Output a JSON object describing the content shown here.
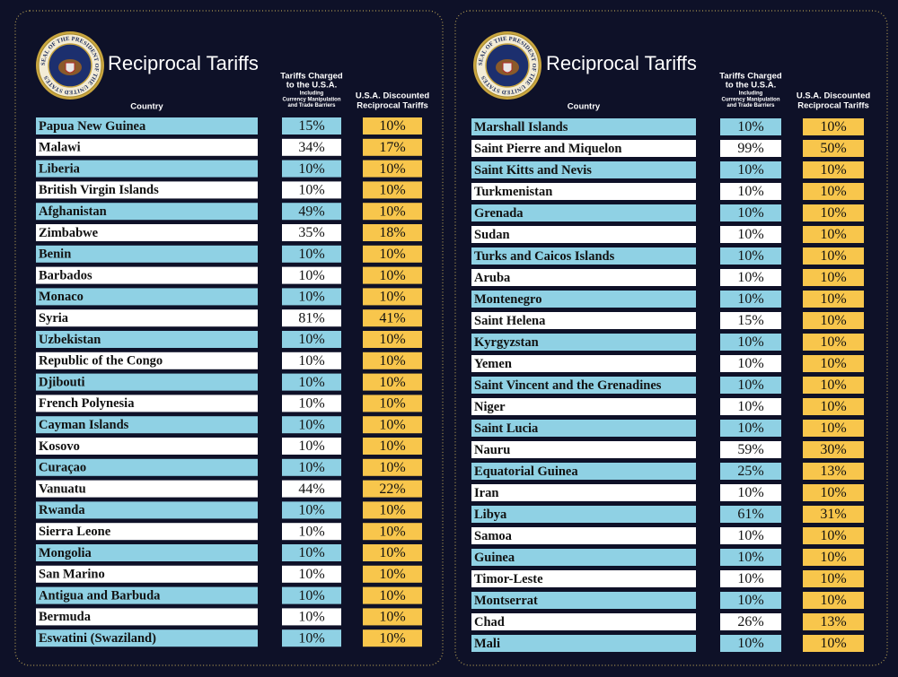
{
  "panels": [
    {
      "seal_text": "SEAL OF THE PRESIDENT OF THE UNITED STATES",
      "title": "Reciprocal Tariffs",
      "headers": {
        "country": "Country",
        "charged": [
          "Tariffs Charged",
          "to the U.S.A."
        ],
        "charged_note": [
          "Including",
          "Currency Manipulation",
          "and Trade Barriers"
        ],
        "discounted": [
          "U.S.A. Discounted",
          "Reciprocal Tariffs"
        ]
      },
      "rows": [
        [
          "Papua New Guinea",
          "15%",
          "10%"
        ],
        [
          "Malawi",
          "34%",
          "17%"
        ],
        [
          "Liberia",
          "10%",
          "10%"
        ],
        [
          "British Virgin Islands",
          "10%",
          "10%"
        ],
        [
          "Afghanistan",
          "49%",
          "10%"
        ],
        [
          "Zimbabwe",
          "35%",
          "18%"
        ],
        [
          "Benin",
          "10%",
          "10%"
        ],
        [
          "Barbados",
          "10%",
          "10%"
        ],
        [
          "Monaco",
          "10%",
          "10%"
        ],
        [
          "Syria",
          "81%",
          "41%"
        ],
        [
          "Uzbekistan",
          "10%",
          "10%"
        ],
        [
          "Republic of the Congo",
          "10%",
          "10%"
        ],
        [
          "Djibouti",
          "10%",
          "10%"
        ],
        [
          "French Polynesia",
          "10%",
          "10%"
        ],
        [
          "Cayman Islands",
          "10%",
          "10%"
        ],
        [
          "Kosovo",
          "10%",
          "10%"
        ],
        [
          "Curaçao",
          "10%",
          "10%"
        ],
        [
          "Vanuatu",
          "44%",
          "22%"
        ],
        [
          "Rwanda",
          "10%",
          "10%"
        ],
        [
          "Sierra Leone",
          "10%",
          "10%"
        ],
        [
          "Mongolia",
          "10%",
          "10%"
        ],
        [
          "San Marino",
          "10%",
          "10%"
        ],
        [
          "Antigua and Barbuda",
          "10%",
          "10%"
        ],
        [
          "Bermuda",
          "10%",
          "10%"
        ],
        [
          "Eswatini (Swaziland)",
          "10%",
          "10%"
        ]
      ]
    },
    {
      "seal_text": "SEAL OF THE PRESIDENT OF THE UNITED STATES",
      "title": "Reciprocal Tariffs",
      "headers": {
        "country": "Country",
        "charged": [
          "Tariffs Charged",
          "to the U.S.A."
        ],
        "charged_note": [
          "Including",
          "Currency Manipulation",
          "and Trade Barriers"
        ],
        "discounted": [
          "U.S.A. Discounted",
          "Reciprocal Tariffs"
        ]
      },
      "rows": [
        [
          "Marshall Islands",
          "10%",
          "10%"
        ],
        [
          "Saint Pierre and Miquelon",
          "99%",
          "50%"
        ],
        [
          "Saint Kitts and Nevis",
          "10%",
          "10%"
        ],
        [
          "Turkmenistan",
          "10%",
          "10%"
        ],
        [
          "Grenada",
          "10%",
          "10%"
        ],
        [
          "Sudan",
          "10%",
          "10%"
        ],
        [
          "Turks and Caicos Islands",
          "10%",
          "10%"
        ],
        [
          "Aruba",
          "10%",
          "10%"
        ],
        [
          "Montenegro",
          "10%",
          "10%"
        ],
        [
          "Saint Helena",
          "15%",
          "10%"
        ],
        [
          "Kyrgyzstan",
          "10%",
          "10%"
        ],
        [
          "Yemen",
          "10%",
          "10%"
        ],
        [
          "Saint Vincent and the Grenadines",
          "10%",
          "10%"
        ],
        [
          "Niger",
          "10%",
          "10%"
        ],
        [
          "Saint Lucia",
          "10%",
          "10%"
        ],
        [
          "Nauru",
          "59%",
          "30%"
        ],
        [
          "Equatorial Guinea",
          "25%",
          "13%"
        ],
        [
          "Iran",
          "10%",
          "10%"
        ],
        [
          "Libya",
          "61%",
          "31%"
        ],
        [
          "Samoa",
          "10%",
          "10%"
        ],
        [
          "Guinea",
          "10%",
          "10%"
        ],
        [
          "Timor-Leste",
          "10%",
          "10%"
        ],
        [
          "Montserrat",
          "10%",
          "10%"
        ],
        [
          "Chad",
          "26%",
          "13%"
        ],
        [
          "Mali",
          "10%",
          "10%"
        ]
      ]
    }
  ]
}
